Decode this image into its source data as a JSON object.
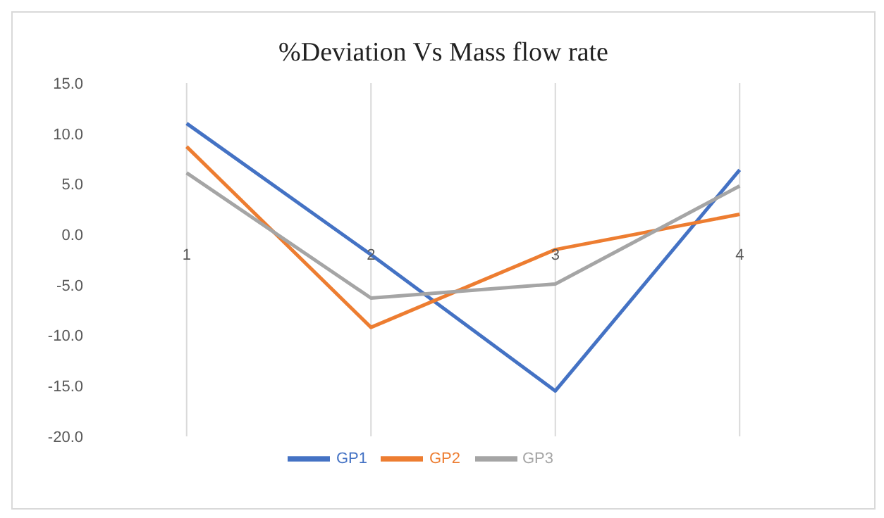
{
  "chart_data": {
    "type": "line",
    "title": "%Deviation Vs Mass flow rate",
    "categories": [
      "1",
      "2",
      "3",
      "4"
    ],
    "series": [
      {
        "name": "GP1",
        "color": "#4472c4",
        "values": [
          11.0,
          -2.0,
          -15.5,
          6.4
        ]
      },
      {
        "name": "GP2",
        "color": "#ed7d31",
        "values": [
          8.7,
          -9.2,
          -1.5,
          2.0
        ]
      },
      {
        "name": "GP3",
        "color": "#a5a5a5",
        "values": [
          6.1,
          -6.3,
          -4.9,
          4.8
        ]
      }
    ],
    "ylim": [
      -20,
      15
    ],
    "yticks": [
      {
        "value": -20,
        "label": "-20.0"
      },
      {
        "value": -15,
        "label": "-15.0"
      },
      {
        "value": -10,
        "label": "-10.0"
      },
      {
        "value": -5,
        "label": "-5.0"
      },
      {
        "value": 0,
        "label": "0.0"
      },
      {
        "value": 5,
        "label": "5.0"
      },
      {
        "value": 10,
        "label": "10.0"
      },
      {
        "value": 15,
        "label": "15.0"
      }
    ],
    "grid": "x",
    "legend": "bottom",
    "marker": "none",
    "line_style": "solid"
  }
}
